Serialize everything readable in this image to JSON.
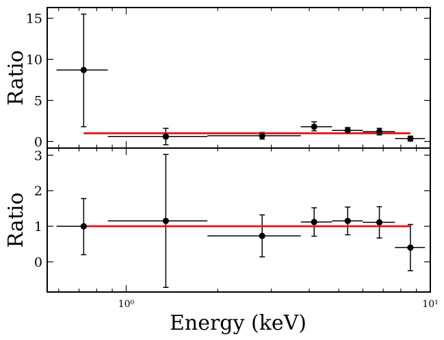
{
  "chart_data": [
    {
      "type": "scatter",
      "panel": "top",
      "xscale": "log",
      "xlim": [
        0.55,
        10
      ],
      "ylim": [
        -0.8,
        16.3
      ],
      "ylabel": "Ratio",
      "yticks": [
        0,
        5,
        10,
        15
      ],
      "ytick_labels": [
        "0",
        "5",
        "10",
        "15"
      ],
      "points": [
        {
          "x": 0.725,
          "xlo": 0.59,
          "xhi": 0.87,
          "y": 8.7,
          "ylo": 1.8,
          "yhi": 15.5
        },
        {
          "x": 1.35,
          "xlo": 0.87,
          "xhi": 1.85,
          "y": 0.6,
          "ylo": -0.4,
          "yhi": 1.6
        },
        {
          "x": 2.8,
          "xlo": 1.85,
          "xhi": 3.75,
          "y": 0.7,
          "ylo": 0.3,
          "yhi": 1.1
        },
        {
          "x": 4.15,
          "xlo": 3.75,
          "xhi": 4.75,
          "y": 1.8,
          "ylo": 1.3,
          "yhi": 2.4
        },
        {
          "x": 5.35,
          "xlo": 4.75,
          "xhi": 6.0,
          "y": 1.35,
          "ylo": 1.0,
          "yhi": 1.7
        },
        {
          "x": 6.8,
          "xlo": 6.0,
          "xhi": 7.65,
          "y": 1.2,
          "ylo": 0.8,
          "yhi": 1.6
        },
        {
          "x": 8.6,
          "xlo": 7.65,
          "xhi": 9.6,
          "y": 0.35,
          "ylo": 0.05,
          "yhi": 0.65
        }
      ],
      "model": {
        "name": "model",
        "color": "#e8161b",
        "x": [
          0.725,
          8.6
        ],
        "y": [
          1.0,
          1.0
        ]
      }
    },
    {
      "type": "scatter",
      "panel": "bottom",
      "xscale": "log",
      "xlim": [
        0.55,
        10
      ],
      "ylim": [
        -0.85,
        3.2
      ],
      "xlabel": "Energy (keV)",
      "ylabel": "Ratio",
      "yticks": [
        0,
        1,
        2,
        3
      ],
      "ytick_labels": [
        "0",
        "1",
        "2",
        "3"
      ],
      "xticks": [
        1,
        10
      ],
      "xtick_labels": [
        "10⁰",
        "10¹"
      ],
      "points": [
        {
          "x": 0.725,
          "xlo": 0.59,
          "xhi": 0.87,
          "y": 1.0,
          "ylo": 0.2,
          "yhi": 1.78
        },
        {
          "x": 1.35,
          "xlo": 0.87,
          "xhi": 1.85,
          "y": 1.15,
          "ylo": -0.72,
          "yhi": 3.02
        },
        {
          "x": 2.8,
          "xlo": 1.85,
          "xhi": 3.75,
          "y": 0.73,
          "ylo": 0.14,
          "yhi": 1.32
        },
        {
          "x": 4.15,
          "xlo": 3.75,
          "xhi": 4.75,
          "y": 1.12,
          "ylo": 0.72,
          "yhi": 1.52
        },
        {
          "x": 5.35,
          "xlo": 4.75,
          "xhi": 6.0,
          "y": 1.15,
          "ylo": 0.76,
          "yhi": 1.54
        },
        {
          "x": 6.8,
          "xlo": 6.0,
          "xhi": 7.65,
          "y": 1.11,
          "ylo": 0.67,
          "yhi": 1.55
        },
        {
          "x": 8.6,
          "xlo": 7.65,
          "xhi": 9.6,
          "y": 0.4,
          "ylo": -0.25,
          "yhi": 1.05
        }
      ],
      "model": {
        "name": "model",
        "color": "#e8161b",
        "x": [
          0.725,
          8.6
        ],
        "y": [
          1.0,
          1.0
        ]
      }
    }
  ]
}
